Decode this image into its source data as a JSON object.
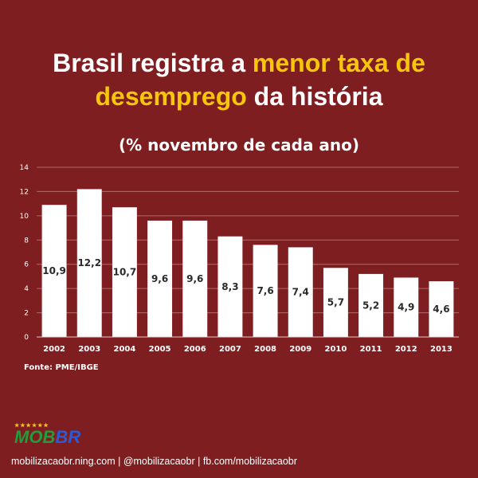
{
  "headline": {
    "part1": "Brasil registra a ",
    "highlight1": "menor taxa de",
    "highlight2": "desemprego",
    "part2": " da história"
  },
  "colors": {
    "background": "#7e1e21",
    "highlight": "#f5c60a",
    "bar": "#ffffff",
    "text": "#ffffff"
  },
  "chart_data": {
    "type": "bar",
    "title": "(% novembro de cada ano)",
    "categories": [
      "2002",
      "2003",
      "2004",
      "2005",
      "2006",
      "2007",
      "2008",
      "2009",
      "2010",
      "2011",
      "2012",
      "2013"
    ],
    "values": [
      10.9,
      12.2,
      10.7,
      9.6,
      9.6,
      8.3,
      7.6,
      7.4,
      5.7,
      5.2,
      4.9,
      4.6
    ],
    "value_labels": [
      "10,9",
      "12,2",
      "10,7",
      "9,6",
      "9,6",
      "8,3",
      "7,6",
      "7,4",
      "5,7",
      "5,2",
      "4,9",
      "4,6"
    ],
    "yticks": [
      0,
      2,
      4,
      6,
      8,
      10,
      12,
      14
    ],
    "ylim": [
      0,
      14
    ],
    "grid": true,
    "xlabel": "",
    "ylabel": ""
  },
  "source": "Fonte: PME/IBGE",
  "logo": {
    "stars": "★★★★★★",
    "mob": "MOB",
    "br": "BR"
  },
  "footer": "mobilizacaobr.ning.com | @mobilizacaobr | fb.com/mobilizacaobr"
}
